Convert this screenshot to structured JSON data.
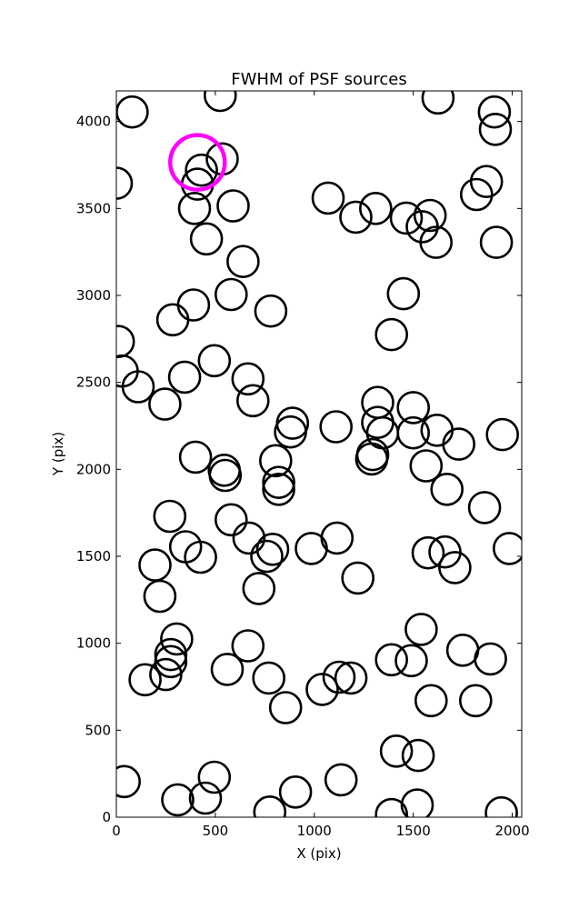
{
  "chart_data": {
    "type": "scatter",
    "title": "FWHM of PSF sources",
    "xlabel": "X (pix)",
    "ylabel": "Y (pix)",
    "xlim": [
      0,
      2048
    ],
    "ylim": [
      0,
      4176
    ],
    "xticks": [
      0,
      500,
      1000,
      1500,
      2000
    ],
    "yticks": [
      0,
      500,
      1000,
      1500,
      2000,
      2500,
      3000,
      3500,
      4000
    ],
    "grid": false,
    "marker_color": "#000000",
    "highlight_color": "#ff00ff",
    "points": [
      {
        "x": 80,
        "y": 4055
      },
      {
        "x": 525,
        "y": 4150
      },
      {
        "x": 1625,
        "y": 4135
      },
      {
        "x": 1910,
        "y": 4055
      },
      {
        "x": 1915,
        "y": 3955
      },
      {
        "x": 0,
        "y": 3645
      },
      {
        "x": 535,
        "y": 3785
      },
      {
        "x": 430,
        "y": 3720
      },
      {
        "x": 410,
        "y": 3640
      },
      {
        "x": 395,
        "y": 3500
      },
      {
        "x": 590,
        "y": 3515
      },
      {
        "x": 455,
        "y": 3325
      },
      {
        "x": 640,
        "y": 3195
      },
      {
        "x": 1070,
        "y": 3560
      },
      {
        "x": 1210,
        "y": 3450
      },
      {
        "x": 1310,
        "y": 3500
      },
      {
        "x": 1465,
        "y": 3445
      },
      {
        "x": 1545,
        "y": 3395
      },
      {
        "x": 1585,
        "y": 3460
      },
      {
        "x": 1615,
        "y": 3305
      },
      {
        "x": 1820,
        "y": 3580
      },
      {
        "x": 1870,
        "y": 3655
      },
      {
        "x": 1920,
        "y": 3305
      },
      {
        "x": 390,
        "y": 2945
      },
      {
        "x": 580,
        "y": 3005
      },
      {
        "x": 285,
        "y": 2860
      },
      {
        "x": 780,
        "y": 2910
      },
      {
        "x": 1450,
        "y": 3010
      },
      {
        "x": 1390,
        "y": 2775
      },
      {
        "x": 10,
        "y": 2735
      },
      {
        "x": 30,
        "y": 2565
      },
      {
        "x": 110,
        "y": 2475
      },
      {
        "x": 245,
        "y": 2375
      },
      {
        "x": 345,
        "y": 2530
      },
      {
        "x": 495,
        "y": 2625
      },
      {
        "x": 665,
        "y": 2520
      },
      {
        "x": 690,
        "y": 2395
      },
      {
        "x": 890,
        "y": 2265
      },
      {
        "x": 880,
        "y": 2215
      },
      {
        "x": 1110,
        "y": 2245
      },
      {
        "x": 1320,
        "y": 2385
      },
      {
        "x": 1500,
        "y": 2355
      },
      {
        "x": 1320,
        "y": 2270
      },
      {
        "x": 1345,
        "y": 2210
      },
      {
        "x": 1500,
        "y": 2210
      },
      {
        "x": 1620,
        "y": 2225
      },
      {
        "x": 1730,
        "y": 2145
      },
      {
        "x": 1950,
        "y": 2200
      },
      {
        "x": 400,
        "y": 2070
      },
      {
        "x": 545,
        "y": 1995
      },
      {
        "x": 550,
        "y": 1965
      },
      {
        "x": 805,
        "y": 2050
      },
      {
        "x": 820,
        "y": 1925
      },
      {
        "x": 820,
        "y": 1885
      },
      {
        "x": 1295,
        "y": 2085
      },
      {
        "x": 1290,
        "y": 2060
      },
      {
        "x": 1565,
        "y": 2020
      },
      {
        "x": 1670,
        "y": 1885
      },
      {
        "x": 1860,
        "y": 1780
      },
      {
        "x": 270,
        "y": 1730
      },
      {
        "x": 580,
        "y": 1710
      },
      {
        "x": 670,
        "y": 1605
      },
      {
        "x": 350,
        "y": 1555
      },
      {
        "x": 425,
        "y": 1495
      },
      {
        "x": 195,
        "y": 1450
      },
      {
        "x": 220,
        "y": 1270
      },
      {
        "x": 760,
        "y": 1500
      },
      {
        "x": 790,
        "y": 1540
      },
      {
        "x": 985,
        "y": 1545
      },
      {
        "x": 1115,
        "y": 1605
      },
      {
        "x": 1220,
        "y": 1375
      },
      {
        "x": 1575,
        "y": 1520
      },
      {
        "x": 1660,
        "y": 1525
      },
      {
        "x": 1710,
        "y": 1435
      },
      {
        "x": 1985,
        "y": 1545
      },
      {
        "x": 720,
        "y": 1315
      },
      {
        "x": 305,
        "y": 1025
      },
      {
        "x": 275,
        "y": 935
      },
      {
        "x": 275,
        "y": 895
      },
      {
        "x": 250,
        "y": 820
      },
      {
        "x": 145,
        "y": 790
      },
      {
        "x": 560,
        "y": 850
      },
      {
        "x": 665,
        "y": 985
      },
      {
        "x": 770,
        "y": 800
      },
      {
        "x": 855,
        "y": 630
      },
      {
        "x": 1040,
        "y": 735
      },
      {
        "x": 1125,
        "y": 805
      },
      {
        "x": 1185,
        "y": 800
      },
      {
        "x": 1390,
        "y": 905
      },
      {
        "x": 1490,
        "y": 900
      },
      {
        "x": 1540,
        "y": 1080
      },
      {
        "x": 1590,
        "y": 670
      },
      {
        "x": 1750,
        "y": 960
      },
      {
        "x": 1890,
        "y": 910
      },
      {
        "x": 1815,
        "y": 670
      },
      {
        "x": 1415,
        "y": 380
      },
      {
        "x": 1525,
        "y": 355
      },
      {
        "x": 1135,
        "y": 215
      },
      {
        "x": 495,
        "y": 230
      },
      {
        "x": 450,
        "y": 110
      },
      {
        "x": 310,
        "y": 100
      },
      {
        "x": 40,
        "y": 205
      },
      {
        "x": 775,
        "y": 30
      },
      {
        "x": 905,
        "y": 145
      },
      {
        "x": 1390,
        "y": 15
      },
      {
        "x": 1520,
        "y": 70
      },
      {
        "x": 1945,
        "y": 25
      }
    ],
    "highlight_points": [
      {
        "x": 410,
        "y": 3765
      }
    ]
  }
}
